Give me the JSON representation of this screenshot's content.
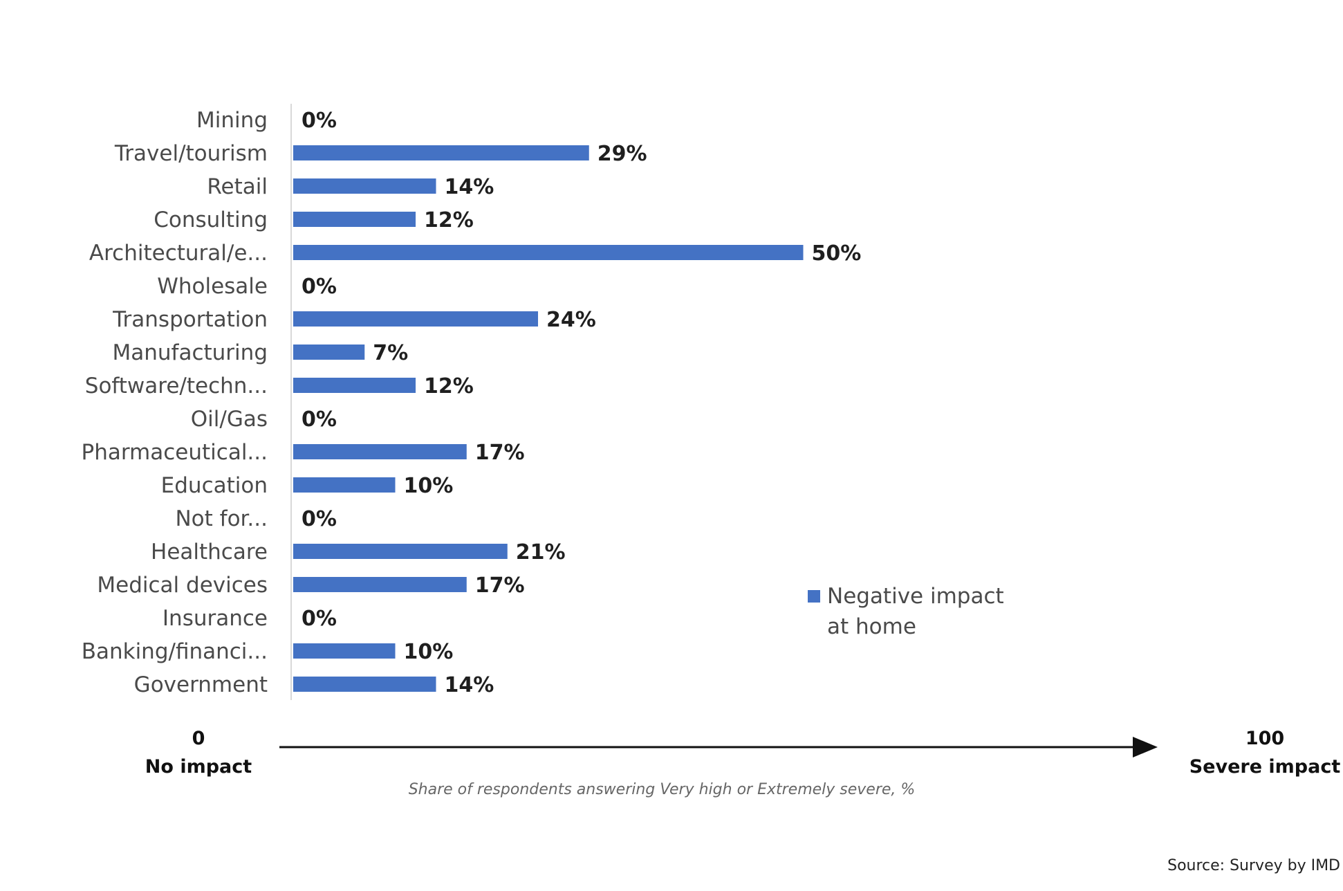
{
  "chart_data": {
    "type": "bar",
    "orientation": "horizontal",
    "categories": [
      "Mining",
      "Travel/tourism",
      "Retail",
      "Consulting",
      "Architectural/e...",
      "Wholesale",
      "Transportation",
      "Manufacturing",
      "Software/techn...",
      "Oil/Gas",
      "Pharmaceutical...",
      "Education",
      "Not for...",
      "Healthcare",
      "Medical devices",
      "Insurance",
      "Banking/financi...",
      "Government"
    ],
    "series": [
      {
        "name": "Negative impact at home",
        "values": [
          0,
          29,
          14,
          12,
          50,
          0,
          24,
          7,
          12,
          0,
          17,
          10,
          0,
          21,
          17,
          0,
          10,
          14
        ],
        "value_labels": [
          "0%",
          "29%",
          "14%",
          "12%",
          "50%",
          "0%",
          "24%",
          "7%",
          "12%",
          "0%",
          "17%",
          "10%",
          "0%",
          "21%",
          "17%",
          "0%",
          "10%",
          "14%"
        ],
        "color": "#4472c4"
      }
    ],
    "xlim": [
      0,
      100
    ],
    "legend": {
      "position": "right",
      "lines": [
        "Negative impact",
        "at home"
      ]
    },
    "axis": {
      "start_value": "0",
      "start_label": "No impact",
      "end_value": "100",
      "end_label": "Severe impact",
      "caption": "Share of respondents answering Very high or Extremely severe, %"
    },
    "source": "Source: Survey by IMD",
    "grid": false
  }
}
